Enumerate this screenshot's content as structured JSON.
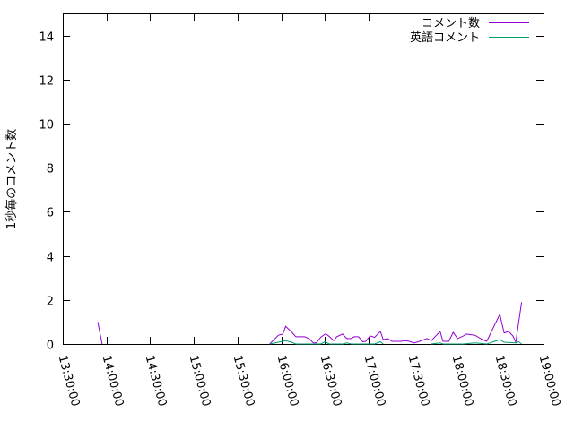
{
  "chart_data": {
    "type": "line",
    "title": "",
    "xlabel": "",
    "ylabel": "1秒毎のコメント数",
    "xlim": [
      "13:30:00",
      "19:00:00"
    ],
    "ylim": [
      0,
      15
    ],
    "xticks": [
      "13:30:00",
      "14:00:00",
      "14:30:00",
      "15:00:00",
      "15:30:00",
      "16:00:00",
      "16:30:00",
      "17:00:00",
      "17:30:00",
      "18:00:00",
      "18:30:00",
      "19:00:00"
    ],
    "yticks": [
      "0",
      "2",
      "4",
      "6",
      "8",
      "10",
      "12",
      "14"
    ],
    "grid": false,
    "legend_position": "top-right",
    "series": [
      {
        "name": "コメント数",
        "color": "#9400d3",
        "points": [
          [
            "13:54:00",
            1.0
          ],
          [
            "13:57:00",
            0
          ],
          [
            "15:52:00",
            0
          ],
          [
            "15:58:00",
            0.4
          ],
          [
            "16:01:00",
            0.45
          ],
          [
            "16:03:00",
            0.8
          ],
          [
            "16:07:00",
            0.55
          ],
          [
            "16:10:00",
            0.33
          ],
          [
            "16:16:00",
            0.33
          ],
          [
            "16:19:00",
            0.25
          ],
          [
            "16:22:00",
            0.05
          ],
          [
            "16:24:00",
            0.05
          ],
          [
            "16:27:00",
            0.3
          ],
          [
            "16:30:00",
            0.45
          ],
          [
            "16:32:00",
            0.4
          ],
          [
            "16:36:00",
            0.15
          ],
          [
            "16:38:00",
            0.33
          ],
          [
            "16:42:00",
            0.45
          ],
          [
            "16:45:00",
            0.25
          ],
          [
            "16:48:00",
            0.25
          ],
          [
            "16:50:00",
            0.33
          ],
          [
            "16:53:00",
            0.33
          ],
          [
            "16:56:00",
            0.1
          ],
          [
            "16:58:00",
            0.12
          ],
          [
            "17:01:00",
            0.37
          ],
          [
            "17:04:00",
            0.3
          ],
          [
            "17:08:00",
            0.57
          ],
          [
            "17:10:00",
            0.2
          ],
          [
            "17:13:00",
            0.25
          ],
          [
            "17:16:00",
            0.12
          ],
          [
            "17:22:00",
            0.12
          ],
          [
            "17:25:00",
            0.15
          ],
          [
            "17:28:00",
            0.12
          ],
          [
            "17:31:00",
            0.05
          ],
          [
            "17:34:00",
            0.1
          ],
          [
            "17:40:00",
            0.25
          ],
          [
            "17:43:00",
            0.15
          ],
          [
            "17:49:00",
            0.57
          ],
          [
            "17:51:00",
            0.12
          ],
          [
            "17:55:00",
            0.12
          ],
          [
            "17:58:00",
            0.53
          ],
          [
            "18:01:00",
            0.25
          ],
          [
            "18:05:00",
            0.37
          ],
          [
            "18:07:00",
            0.45
          ],
          [
            "18:13:00",
            0.4
          ],
          [
            "18:18:00",
            0.2
          ],
          [
            "18:21:00",
            0.12
          ],
          [
            "18:30:00",
            1.35
          ],
          [
            "18:33:00",
            0.5
          ],
          [
            "18:36:00",
            0.57
          ],
          [
            "18:39:00",
            0.37
          ],
          [
            "18:41:00",
            0.08
          ],
          [
            "18:45:00",
            1.9
          ]
        ]
      },
      {
        "name": "英語コメント",
        "color": "#009e73",
        "points": [
          [
            "15:52:00",
            0
          ],
          [
            "15:58:00",
            0.08
          ],
          [
            "16:03:00",
            0.15
          ],
          [
            "16:07:00",
            0.08
          ],
          [
            "16:10:00",
            0
          ],
          [
            "16:27:00",
            0
          ],
          [
            "16:30:00",
            0.1
          ],
          [
            "16:33:00",
            0
          ],
          [
            "16:42:00",
            0
          ],
          [
            "16:45:00",
            0.05
          ],
          [
            "16:48:00",
            0
          ],
          [
            "17:04:00",
            0
          ],
          [
            "17:08:00",
            0.1
          ],
          [
            "17:10:00",
            0
          ],
          [
            "17:43:00",
            0
          ],
          [
            "17:49:00",
            0.05
          ],
          [
            "17:51:00",
            0
          ],
          [
            "18:05:00",
            0
          ],
          [
            "18:13:00",
            0.05
          ],
          [
            "18:21:00",
            0
          ],
          [
            "18:30:00",
            0.2
          ],
          [
            "18:33:00",
            0.08
          ],
          [
            "18:41:00",
            0.05
          ],
          [
            "18:43:00",
            0.1
          ],
          [
            "18:45:00",
            0
          ]
        ]
      }
    ]
  }
}
